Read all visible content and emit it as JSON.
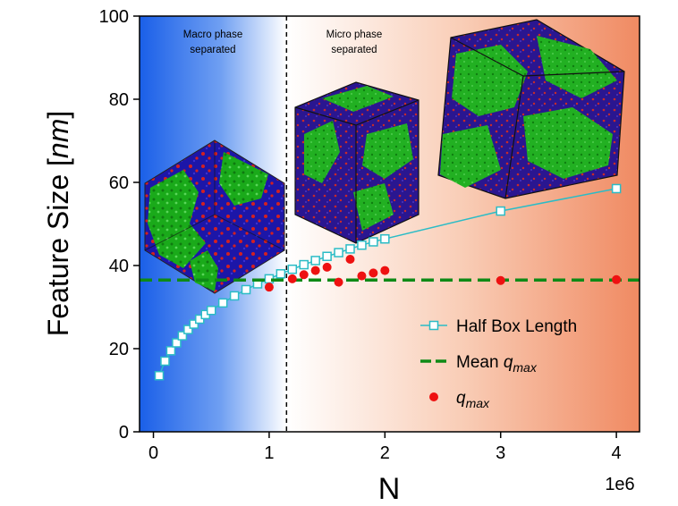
{
  "chart_data": {
    "type": "scatter",
    "xlabel": "N",
    "ylabel_main": "Feature Size [",
    "ylabel_unit": "nm",
    "ylabel_end": "]",
    "x_multiplier": "1e6",
    "xlim": [
      -0.12,
      4.2
    ],
    "ylim": [
      0,
      100
    ],
    "xticks": [
      0,
      1,
      2,
      3,
      4
    ],
    "yticks": [
      0,
      20,
      40,
      60,
      80,
      100
    ],
    "grid": false,
    "legend_position": "bottom-right",
    "divider_x": 1.15,
    "regions": [
      {
        "label_line1": "Macro phase",
        "label_line2": "separated",
        "color": "#1a5fe8"
      },
      {
        "label_line1": "Micro phase",
        "label_line2": "separated",
        "color": "#f08a62"
      }
    ],
    "series": [
      {
        "name": "Half Box Length",
        "color": "#2bbcc6",
        "style": "line-square-marker",
        "x": [
          0.05,
          0.1,
          0.15,
          0.2,
          0.25,
          0.3,
          0.35,
          0.4,
          0.45,
          0.5,
          0.6,
          0.7,
          0.8,
          0.9,
          1.0,
          1.1,
          1.2,
          1.3,
          1.4,
          1.5,
          1.6,
          1.7,
          1.8,
          1.9,
          2.0,
          3.0,
          4.0
        ],
        "values": [
          13.5,
          17.0,
          19.5,
          21.4,
          23.1,
          24.6,
          25.9,
          27.1,
          28.2,
          29.2,
          31.0,
          32.7,
          34.2,
          35.6,
          36.8,
          38.0,
          39.1,
          40.2,
          41.2,
          42.2,
          43.1,
          44.0,
          44.9,
          45.7,
          46.4,
          53.1,
          58.5
        ]
      },
      {
        "name_main": "Mean ",
        "name_sub": "q",
        "name_subscript": "max",
        "color": "#0e8a16",
        "style": "dashed-line",
        "value": 36.5
      },
      {
        "name_main": "",
        "name_sub": "q",
        "name_subscript": "max",
        "color": "#ee1111",
        "style": "dot",
        "x": [
          1.0,
          1.2,
          1.3,
          1.4,
          1.5,
          1.6,
          1.7,
          1.8,
          1.9,
          2.0,
          3.0,
          4.0
        ],
        "values": [
          34.8,
          36.8,
          37.8,
          38.8,
          39.6,
          36.0,
          41.5,
          37.5,
          38.2,
          38.8,
          36.4,
          36.6
        ]
      }
    ],
    "insets": [
      {
        "name": "macro-phase-structure-image",
        "palette": [
          "#1c16a8",
          "#1aaa1a",
          "#d42020"
        ]
      },
      {
        "name": "micro-phase-cube-small-image",
        "palette": [
          "#2a1690",
          "#22b022",
          "#c82a2a"
        ]
      },
      {
        "name": "micro-phase-cube-large-image",
        "palette": [
          "#2a1690",
          "#22b022",
          "#c82a2a"
        ]
      }
    ]
  }
}
